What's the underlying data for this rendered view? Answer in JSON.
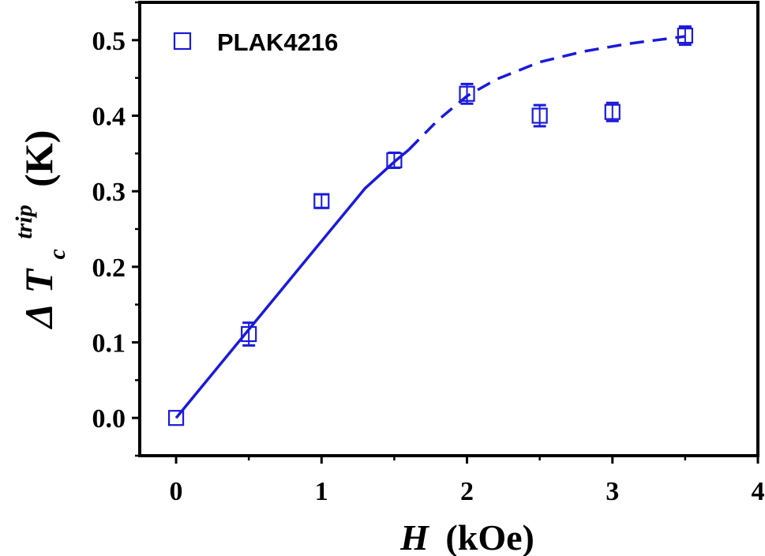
{
  "chart_data": {
    "type": "scatter",
    "xlabel": {
      "symbol": "H",
      "unit": "(kOe)"
    },
    "ylabel": {
      "delta": "Δ",
      "symbol": "T",
      "subscript": "c",
      "superscript": "trip",
      "unit": "(K)"
    },
    "xlim": [
      -0.25,
      4
    ],
    "ylim": [
      -0.05,
      0.55
    ],
    "xticks": [
      0,
      1,
      2,
      3,
      4
    ],
    "xtick_labels": [
      "0",
      "1",
      "2",
      "3",
      "4"
    ],
    "yticks": [
      0.0,
      0.1,
      0.2,
      0.3,
      0.4,
      0.5
    ],
    "ytick_labels": [
      "0.0",
      "0.1",
      "0.2",
      "0.3",
      "0.4",
      "0.5"
    ],
    "grid": false,
    "legend_position": "top-left",
    "color": "#1a1adb",
    "series": [
      {
        "name": "PLAK4216",
        "marker": "open-square",
        "x": [
          0,
          0.5,
          1.0,
          1.5,
          2.0,
          2.5,
          3.0,
          3.5
        ],
        "y": [
          0.0,
          0.111,
          0.287,
          0.341,
          0.429,
          0.4,
          0.405,
          0.506
        ],
        "yerr": [
          0.0,
          0.015,
          0.009,
          0.01,
          0.013,
          0.014,
          0.012,
          0.012
        ]
      }
    ],
    "fit_lines": [
      {
        "style": "solid",
        "x": [
          0,
          0.5,
          1.0,
          1.3,
          1.5,
          1.6
        ],
        "y": [
          0.0,
          0.117,
          0.234,
          0.304,
          0.339,
          0.355
        ]
      },
      {
        "style": "dashed",
        "x": [
          1.6,
          1.8,
          2.0,
          2.2,
          2.5,
          2.8,
          3.1,
          3.3,
          3.5
        ],
        "y": [
          0.355,
          0.394,
          0.426,
          0.448,
          0.471,
          0.485,
          0.495,
          0.5,
          0.505
        ]
      }
    ]
  }
}
